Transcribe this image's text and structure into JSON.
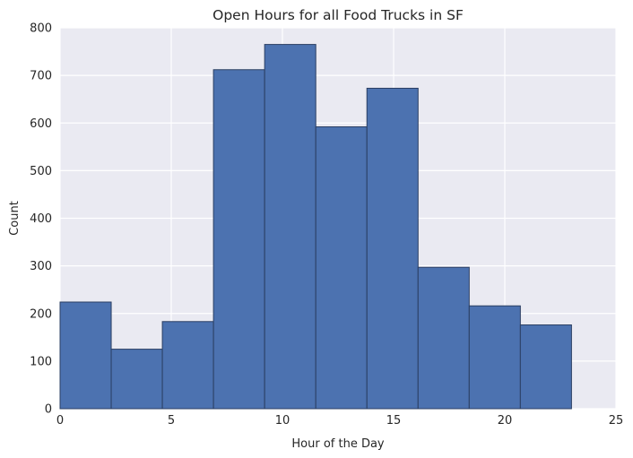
{
  "chart_data": {
    "type": "bar",
    "title": "Open Hours for all Food Trucks in SF",
    "xlabel": "Hour of the Day",
    "ylabel": "Count",
    "xlim": [
      0,
      25
    ],
    "ylim": [
      0,
      800
    ],
    "xticks": [
      0,
      5,
      10,
      15,
      20,
      25
    ],
    "yticks": [
      0,
      100,
      200,
      300,
      400,
      500,
      600,
      700,
      800
    ],
    "grid": true,
    "bar_color": "#4c72b0",
    "edge_color": "#2b3f63",
    "background_color": "#eaeaf2",
    "bins": [
      {
        "x0": 0.0,
        "x1": 2.3,
        "count": 224
      },
      {
        "x0": 2.3,
        "x1": 4.6,
        "count": 125
      },
      {
        "x0": 4.6,
        "x1": 6.9,
        "count": 183
      },
      {
        "x0": 6.9,
        "x1": 9.2,
        "count": 712
      },
      {
        "x0": 9.2,
        "x1": 11.5,
        "count": 765
      },
      {
        "x0": 11.5,
        "x1": 13.8,
        "count": 592
      },
      {
        "x0": 13.8,
        "x1": 16.1,
        "count": 673
      },
      {
        "x0": 16.1,
        "x1": 18.4,
        "count": 297
      },
      {
        "x0": 18.4,
        "x1": 20.7,
        "count": 216
      },
      {
        "x0": 20.7,
        "x1": 23.0,
        "count": 176
      }
    ]
  }
}
